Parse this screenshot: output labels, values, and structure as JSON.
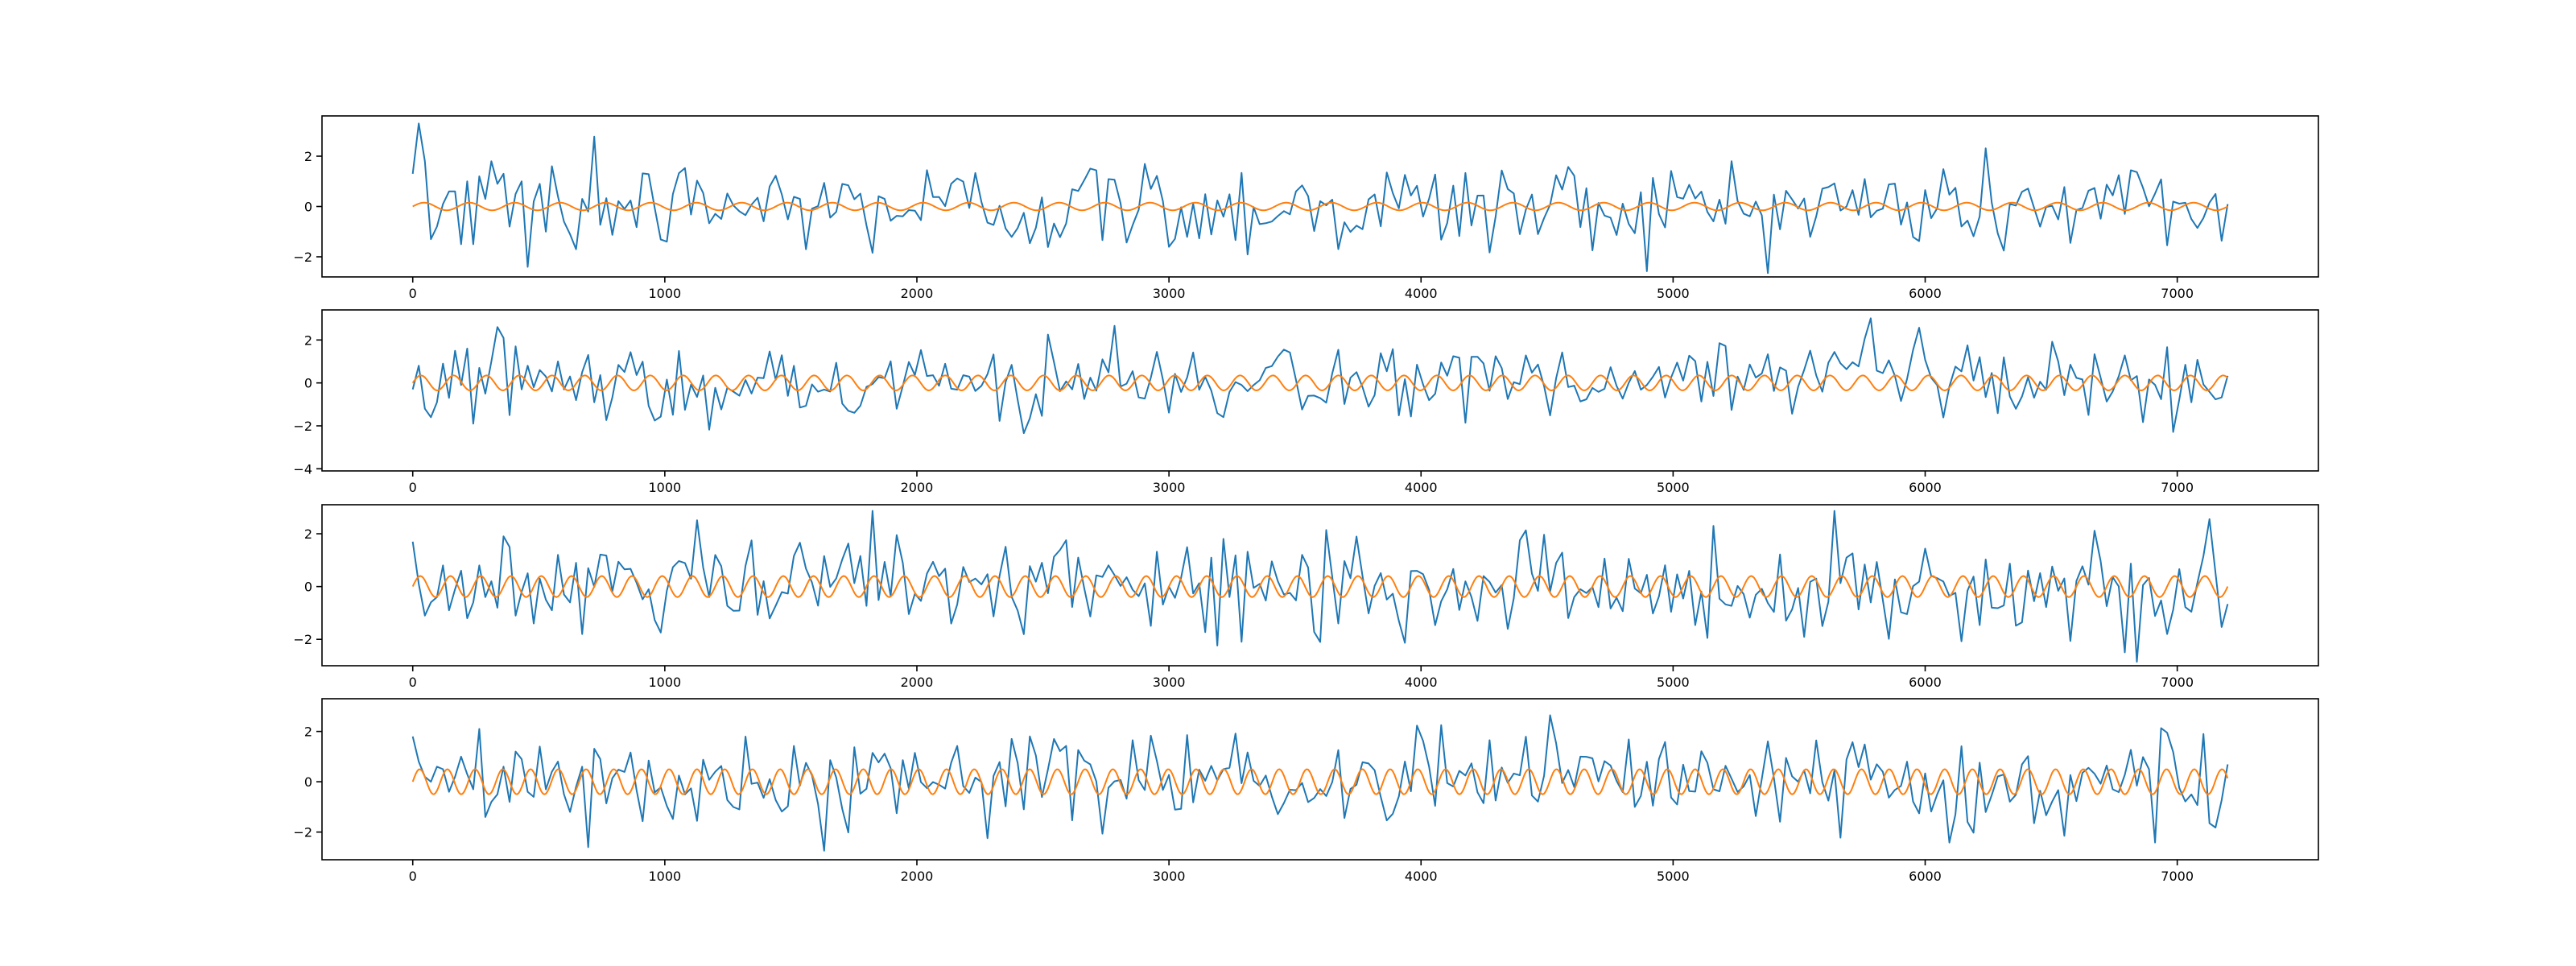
{
  "colors": {
    "series_1": "#1f77b4",
    "series_2": "#ff7f0e",
    "axes": "#000000",
    "background": "#ffffff"
  },
  "chart_data": [
    {
      "type": "line",
      "title": "",
      "xlabel": "",
      "ylabel": "",
      "grid": false,
      "legend": "none",
      "xlim": [
        -360,
        7560
      ],
      "ylim": [
        -2.8,
        3.6
      ],
      "xticks": [
        0,
        1000,
        2000,
        3000,
        4000,
        5000,
        6000,
        7000
      ],
      "yticks": [
        -2,
        0,
        2
      ],
      "series": [
        {
          "kind": "noise",
          "x_start": 0,
          "x_end": 7200,
          "x_step": 24,
          "approx_values": [
            1.3,
            3.3,
            1.8,
            -1.3,
            -0.8,
            0.1,
            0.6,
            0.6,
            -1.5,
            1.0,
            -1.5,
            1.2,
            0.3,
            1.8,
            0.9,
            1.3,
            -0.8,
            0.5,
            1.0,
            -2.4,
            0.2,
            0.9,
            -1.0,
            1.6,
            0.4,
            -0.6,
            -1.1,
            -1.7,
            0.3,
            -0.2
          ]
        },
        {
          "kind": "sine",
          "x_start": 0,
          "x_end": 7200,
          "amplitude": 0.15,
          "period": 180
        }
      ]
    },
    {
      "type": "line",
      "title": "",
      "xlabel": "",
      "ylabel": "",
      "grid": false,
      "legend": "none",
      "xlim": [
        -360,
        7560
      ],
      "ylim": [
        -4.1,
        3.4
      ],
      "xticks": [
        0,
        1000,
        2000,
        3000,
        4000,
        5000,
        6000,
        7000
      ],
      "yticks": [
        -4,
        -2,
        0,
        2
      ],
      "series": [
        {
          "kind": "noise",
          "x_start": 0,
          "x_end": 7200,
          "x_step": 24,
          "approx_values": [
            -0.3,
            0.8,
            -1.2,
            -1.6,
            -0.9,
            0.9,
            -0.7,
            1.5,
            -0.1,
            1.6,
            -1.9,
            0.7,
            -0.5,
            1.0,
            2.6,
            2.1,
            -1.5,
            1.7,
            -0.3,
            0.8,
            -0.2,
            0.6,
            0.3,
            -0.4,
            1.0,
            -0.3,
            0.3,
            -0.8,
            0.5,
            1.3
          ]
        },
        {
          "kind": "sine",
          "x_start": 0,
          "x_end": 7200,
          "amplitude": 0.35,
          "period": 130
        }
      ]
    },
    {
      "type": "line",
      "title": "",
      "xlabel": "",
      "ylabel": "",
      "grid": false,
      "legend": "none",
      "xlim": [
        -360,
        7560
      ],
      "ylim": [
        -3.0,
        3.1
      ],
      "xticks": [
        0,
        1000,
        2000,
        3000,
        4000,
        5000,
        6000,
        7000
      ],
      "yticks": [
        -2,
        0,
        2
      ],
      "series": [
        {
          "kind": "noise",
          "x_start": 0,
          "x_end": 7200,
          "x_step": 24,
          "approx_values": [
            1.7,
            0.1,
            -1.1,
            -0.6,
            -0.4,
            0.8,
            -0.9,
            -0.1,
            0.6,
            -1.2,
            -0.6,
            0.8,
            -0.4,
            0.2,
            -0.8,
            1.9,
            1.5,
            -1.1,
            -0.2,
            0.5,
            -1.4,
            0.3,
            -0.5,
            -0.9,
            1.2,
            -0.3,
            -0.6,
            0.9,
            -1.8,
            0.7
          ]
        },
        {
          "kind": "sine",
          "x_start": 0,
          "x_end": 7200,
          "amplitude": 0.4,
          "period": 120
        }
      ]
    },
    {
      "type": "line",
      "title": "",
      "xlabel": "",
      "ylabel": "",
      "grid": false,
      "legend": "none",
      "xlim": [
        -360,
        7560
      ],
      "ylim": [
        -3.1,
        3.3
      ],
      "xticks": [
        0,
        1000,
        2000,
        3000,
        4000,
        5000,
        6000,
        7000
      ],
      "yticks": [
        -2,
        0,
        2
      ],
      "series": [
        {
          "kind": "noise",
          "x_start": 0,
          "x_end": 7200,
          "x_step": 24,
          "approx_values": [
            1.8,
            0.8,
            0.2,
            0.0,
            0.6,
            0.5,
            -0.4,
            0.2,
            1.0,
            0.3,
            -0.3,
            2.1,
            -1.4,
            -0.8,
            -0.5,
            0.6,
            -0.8,
            1.2,
            0.9,
            -0.4,
            -0.6,
            1.4,
            -0.3,
            0.4,
            0.8,
            -0.5,
            -1.2,
            -0.2,
            0.6,
            -2.6
          ]
        },
        {
          "kind": "sine",
          "x_start": 0,
          "x_end": 7200,
          "amplitude": 0.5,
          "period": 110
        }
      ]
    }
  ]
}
